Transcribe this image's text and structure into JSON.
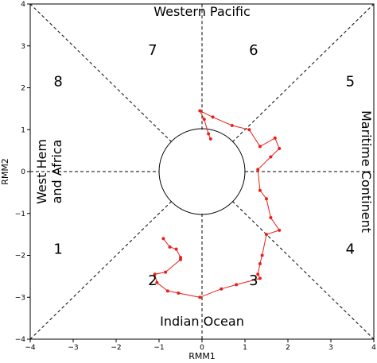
{
  "chart_data": {
    "type": "line",
    "xlabel": "RMM1",
    "ylabel": "RMM2",
    "xlim": [
      -4,
      4
    ],
    "ylim": [
      -4,
      4
    ],
    "xticks": [
      -4,
      -3,
      -2,
      -1,
      0,
      1,
      2,
      3,
      4
    ],
    "yticks": [
      -4,
      -3,
      -2,
      -1,
      0,
      1,
      2,
      3,
      4
    ],
    "grid": false,
    "line_color": "#e8201a",
    "unit_circle_radius": 1,
    "region_labels": {
      "top": "Western Pacific",
      "bottom": "Indian Ocean",
      "left": "West Hem\nand Africa",
      "right": "Maritime Continent"
    },
    "phase_labels": [
      {
        "label": "1",
        "x": -3.35,
        "y": -1.85
      },
      {
        "label": "2",
        "x": -1.15,
        "y": -2.6
      },
      {
        "label": "3",
        "x": 1.2,
        "y": -2.6
      },
      {
        "label": "4",
        "x": 3.45,
        "y": -1.85
      },
      {
        "label": "5",
        "x": 3.45,
        "y": 2.15
      },
      {
        "label": "6",
        "x": 1.2,
        "y": 2.9
      },
      {
        "label": "7",
        "x": -1.15,
        "y": 2.9
      },
      {
        "label": "8",
        "x": -3.35,
        "y": 2.15
      }
    ],
    "series": [
      {
        "x": [
          0.2,
          0.15,
          0.05,
          -0.05,
          0.25,
          0.7,
          1.1,
          1.35,
          1.7,
          1.8,
          1.6,
          1.3,
          1.35,
          1.5,
          1.6,
          1.8,
          1.5,
          1.4,
          1.35,
          1.3,
          1.35,
          0.8,
          0.45,
          -0.05,
          -0.55,
          -0.8,
          -1.05,
          -1.1,
          -0.85,
          -0.5,
          -0.5,
          -0.6,
          -0.75,
          -0.9
        ],
        "y": [
          0.78,
          0.9,
          1.25,
          1.45,
          1.3,
          1.1,
          1.0,
          0.6,
          0.8,
          0.55,
          0.35,
          0.05,
          -0.45,
          -0.65,
          -1.1,
          -1.4,
          -1.5,
          -2.0,
          -2.2,
          -2.45,
          -2.55,
          -2.7,
          -2.8,
          -3.0,
          -2.9,
          -2.85,
          -2.65,
          -2.45,
          -2.4,
          -2.1,
          -2.05,
          -1.85,
          -1.8,
          -1.6
        ]
      }
    ]
  }
}
